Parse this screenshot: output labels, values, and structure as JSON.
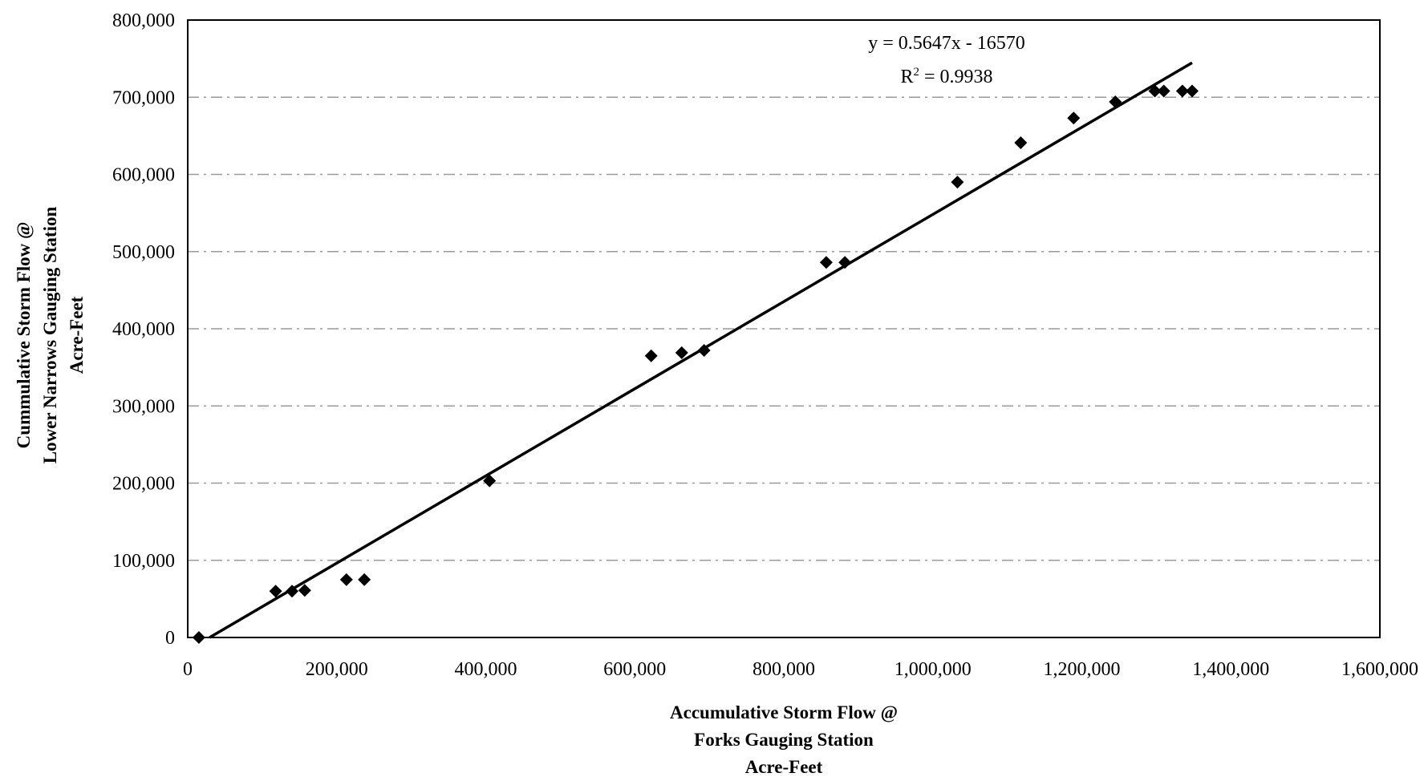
{
  "chart_data": {
    "type": "scatter",
    "title": "",
    "xlabel_lines": [
      "Accumulative Storm Flow @",
      "Forks Gauging Station",
      "Acre-Feet"
    ],
    "ylabel_lines": [
      "Cummulative Storm Flow @",
      "Lower Narrows Gauging Station",
      "Acre-Feet"
    ],
    "xlim": [
      0,
      1600000
    ],
    "ylim": [
      0,
      800000
    ],
    "x_ticks": [
      0,
      200000,
      400000,
      600000,
      800000,
      1000000,
      1200000,
      1400000,
      1600000
    ],
    "x_tick_labels": [
      "0",
      "200,000",
      "400,000",
      "600,000",
      "800,000",
      "1,000,000",
      "1,200,000",
      "1,400,000",
      "1,600,000"
    ],
    "y_ticks": [
      0,
      100000,
      200000,
      300000,
      400000,
      500000,
      600000,
      700000,
      800000
    ],
    "y_tick_labels": [
      "0",
      "100,000",
      "200,000",
      "300,000",
      "400,000",
      "500,000",
      "600,000",
      "700,000",
      "800,000"
    ],
    "grid": "horizontal-major",
    "legend": "none",
    "marker": "diamond",
    "colors": {
      "marker": "#000000",
      "line": "#000000",
      "grid": "#9a9a9a",
      "frame": "#000000"
    },
    "points": [
      {
        "x": 15000,
        "y": 0
      },
      {
        "x": 118000,
        "y": 60000
      },
      {
        "x": 140000,
        "y": 60000
      },
      {
        "x": 157000,
        "y": 61000
      },
      {
        "x": 213000,
        "y": 75000
      },
      {
        "x": 237000,
        "y": 75000
      },
      {
        "x": 405000,
        "y": 203000
      },
      {
        "x": 622000,
        "y": 365000
      },
      {
        "x": 663000,
        "y": 369000
      },
      {
        "x": 693000,
        "y": 372000
      },
      {
        "x": 857000,
        "y": 486000
      },
      {
        "x": 882000,
        "y": 486000
      },
      {
        "x": 1033000,
        "y": 590000
      },
      {
        "x": 1118000,
        "y": 641000
      },
      {
        "x": 1189000,
        "y": 673000
      },
      {
        "x": 1245000,
        "y": 694000
      },
      {
        "x": 1298000,
        "y": 708000
      },
      {
        "x": 1310000,
        "y": 708000
      },
      {
        "x": 1335000,
        "y": 708000
      },
      {
        "x": 1348000,
        "y": 708000
      }
    ],
    "trendline": {
      "slope": 0.5647,
      "intercept": -16570,
      "x_range": [
        29343,
        1348000
      ],
      "equation_label": "y = 0.5647x - 16570",
      "r2_prefix": "R",
      "r2_exponent": "2",
      "r2_value": " = 0.9938"
    }
  }
}
